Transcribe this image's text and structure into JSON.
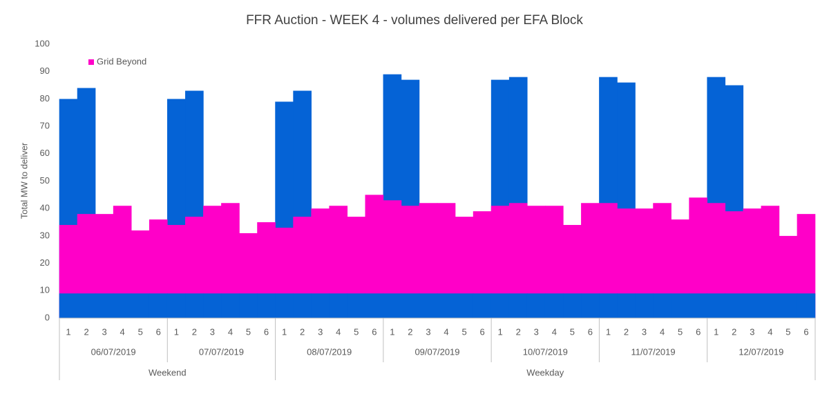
{
  "chart_data": {
    "type": "area",
    "title": "FFR Auction - WEEK 4 - volumes delivered per EFA Block",
    "y_label": "Total MW to deliver",
    "categories": [
      "1",
      "2",
      "3",
      "4",
      "5",
      "6",
      "1",
      "2",
      "3",
      "4",
      "5",
      "6",
      "1",
      "2",
      "3",
      "4",
      "5",
      "6",
      "1",
      "2",
      "3",
      "4",
      "5",
      "6",
      "1",
      "2",
      "3",
      "4",
      "5",
      "6",
      "1",
      "2",
      "3",
      "4",
      "5",
      "6",
      "1",
      "2",
      "3",
      "4",
      "5",
      "6"
    ],
    "date_groups": [
      "06/07/2019",
      "07/07/2019",
      "08/07/2019",
      "09/07/2019",
      "10/07/2019",
      "11/07/2019",
      "12/07/2019"
    ],
    "period_groups": [
      {
        "label": "Weekend",
        "count": 2
      },
      {
        "label": "Weekday",
        "count": 5
      }
    ],
    "series": [
      {
        "color": "#0563d6",
        "values": [
          80,
          84,
          null,
          null,
          null,
          null,
          80,
          83,
          null,
          null,
          null,
          null,
          79,
          83,
          null,
          null,
          null,
          null,
          89,
          87,
          null,
          null,
          null,
          null,
          87,
          88,
          null,
          null,
          null,
          null,
          88,
          86,
          null,
          null,
          null,
          null,
          88,
          85,
          null,
          null,
          null,
          null
        ]
      },
      {
        "name": "Grid Beyond",
        "color": "#ff00c8",
        "values": [
          34,
          38,
          38,
          41,
          32,
          36,
          34,
          37,
          41,
          42,
          31,
          35,
          33,
          37,
          40,
          41,
          37,
          45,
          43,
          41,
          42,
          42,
          37,
          39,
          41,
          42,
          41,
          41,
          34,
          42,
          42,
          40,
          40,
          42,
          36,
          44,
          42,
          39,
          40,
          41,
          30,
          38
        ]
      },
      {
        "color": "#0563d6",
        "values": [
          9,
          9,
          9,
          9,
          9,
          9,
          9,
          9,
          9,
          9,
          9,
          9,
          9,
          9,
          9,
          9,
          9,
          9,
          9,
          9,
          9,
          9,
          9,
          9,
          9,
          9,
          9,
          9,
          9,
          9,
          9,
          9,
          9,
          9,
          9,
          9,
          9,
          9,
          9,
          9,
          9,
          9
        ]
      }
    ],
    "ylim": [
      0,
      100
    ],
    "yticks": [
      0,
      10,
      20,
      30,
      40,
      50,
      60,
      70,
      80,
      90,
      100
    ],
    "grid": false,
    "legend": "top-left"
  }
}
